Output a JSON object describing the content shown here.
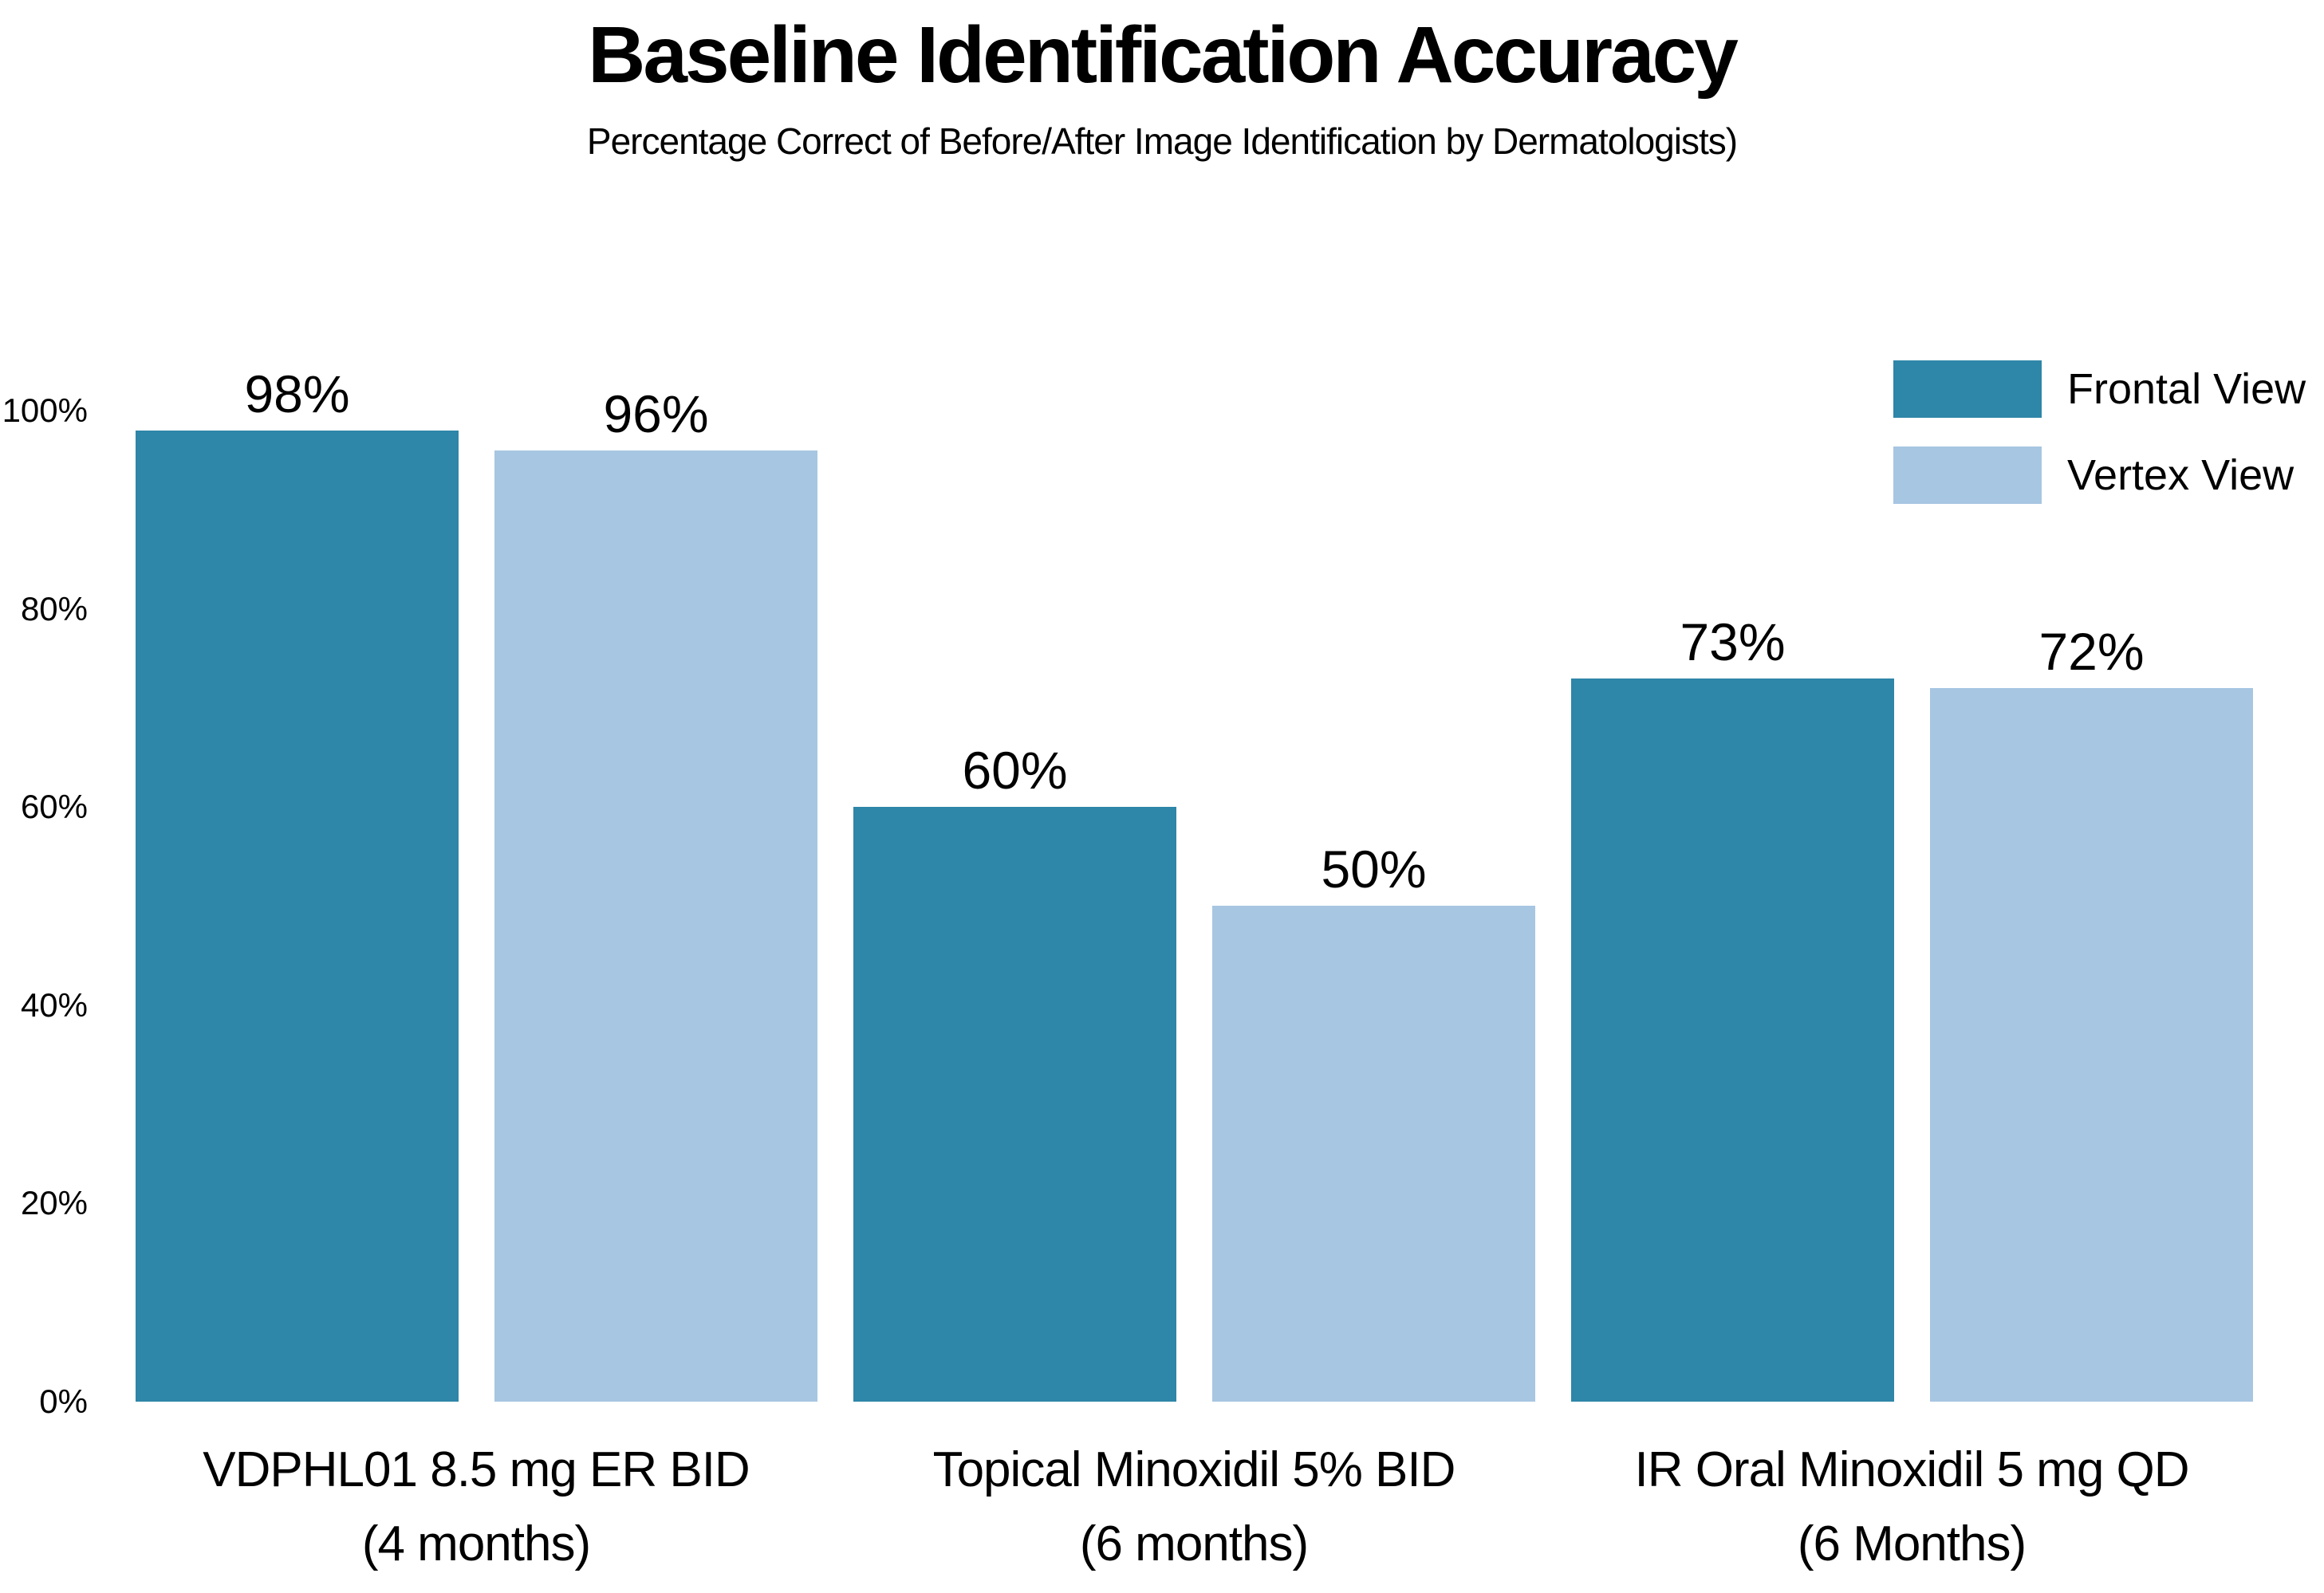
{
  "page": {
    "background": "#FFFFFF",
    "text_color": "#000000"
  },
  "chart_data": {
    "type": "bar",
    "title": "Baseline Identification Accuracy",
    "subtitle": "Percentage Correct of Before/After Image Identification by Dermatologists)",
    "categories": [
      [
        "VDPHL01 8.5 mg ER BID",
        "(4 months)"
      ],
      [
        "Topical Minoxidil 5% BID",
        "(6 months)"
      ],
      [
        "IR Oral Minoxidil 5 mg QD",
        "(6 Months)"
      ]
    ],
    "series": [
      {
        "name": "Frontal View",
        "color": "#2E86A8",
        "values": [
          98,
          60,
          73
        ],
        "value_labels": [
          "98%",
          "60%",
          "73%"
        ]
      },
      {
        "name": "Vertex View",
        "color": "#A7C6E2",
        "values": [
          96,
          50,
          72
        ],
        "value_labels": [
          "96%",
          "50%",
          "72%"
        ]
      }
    ],
    "ylim": [
      0,
      100
    ],
    "yticks": [
      0,
      20,
      40,
      60,
      80,
      100
    ],
    "ytick_labels": [
      "0%",
      "20%",
      "40%",
      "60%",
      "80%",
      "100%"
    ],
    "grid": false,
    "axis_lines": false,
    "legend_position": "top-right"
  }
}
